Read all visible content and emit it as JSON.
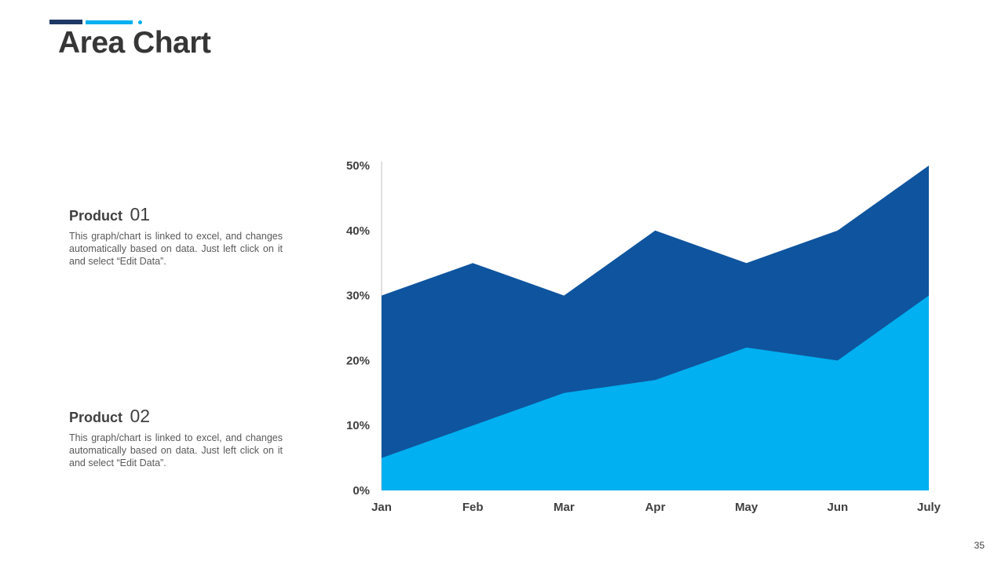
{
  "page": {
    "title": "Area Chart",
    "page_number": "35"
  },
  "products": [
    {
      "label": "Product",
      "number": "01",
      "description": "This graph/chart is linked to excel, and changes automatically based on data. Just left click on it and select “Edit Data”."
    },
    {
      "label": "Product",
      "number": "02",
      "description": "This graph/chart is linked to excel, and changes automatically based on data. Just left click on it and select “Edit Data”."
    }
  ],
  "colors": {
    "accent_dark": "#1f3864",
    "accent_light": "#00b0f0",
    "axis_line": "#bfbfbf",
    "tick_text": "#404040"
  },
  "chart_data": {
    "type": "area",
    "title": "",
    "xlabel": "",
    "ylabel": "",
    "categories": [
      "Jan",
      "Feb",
      "Mar",
      "Apr",
      "May",
      "Jun",
      "July"
    ],
    "series": [
      {
        "name": "Product 01",
        "color": "#0f549e",
        "values": [
          30,
          35,
          30,
          40,
          35,
          40,
          50
        ]
      },
      {
        "name": "Product 02",
        "color": "#00b0f0",
        "values": [
          5,
          10,
          15,
          17,
          22,
          20,
          30
        ]
      }
    ],
    "ylim": [
      0,
      50
    ],
    "ytick_step": 10,
    "ytick_suffix": "%",
    "grid": false,
    "legend": "none"
  }
}
